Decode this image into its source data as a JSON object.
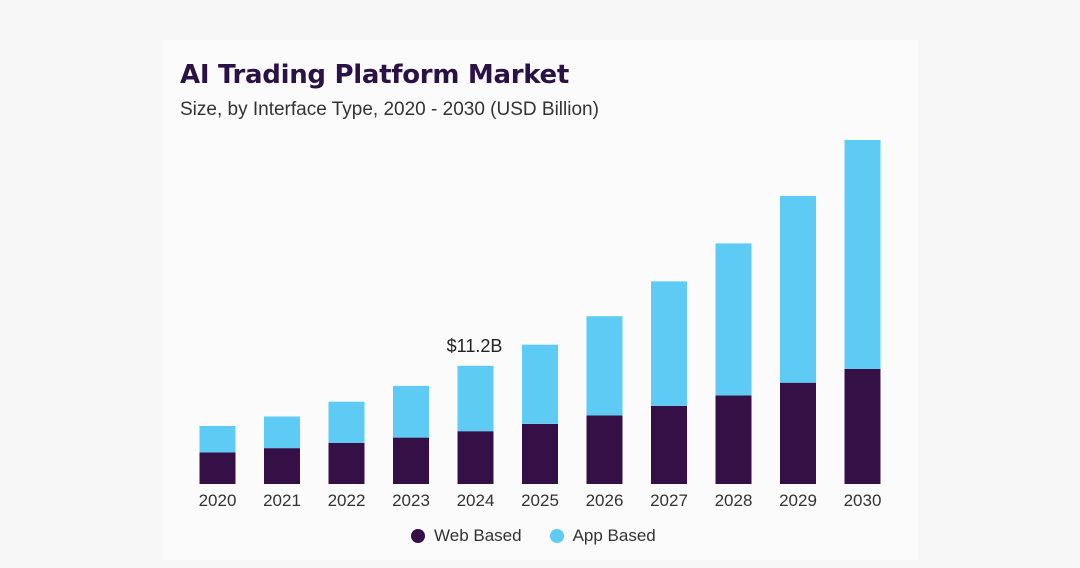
{
  "chart_data": {
    "type": "bar",
    "stacked": true,
    "title": "AI Trading Platform Market",
    "subtitle": "Size, by Interface Type, 2020 - 2030 (USD Billion)",
    "categories": [
      "2020",
      "2021",
      "2022",
      "2023",
      "2024",
      "2025",
      "2026",
      "2027",
      "2028",
      "2029",
      "2030"
    ],
    "series": [
      {
        "name": "Web Based",
        "color": "#351047",
        "values": [
          3.0,
          3.4,
          3.9,
          4.4,
          5.0,
          5.7,
          6.5,
          7.4,
          8.4,
          9.6,
          10.9
        ]
      },
      {
        "name": "App Based",
        "color": "#5ecbf5",
        "values": [
          2.5,
          3.0,
          3.9,
          4.9,
          6.2,
          7.5,
          9.4,
          11.8,
          14.4,
          17.7,
          21.7
        ]
      }
    ],
    "annotations": [
      {
        "category": "2024",
        "text": "$11.2B"
      }
    ],
    "ylim": [
      0,
      32.6
    ],
    "grid": false,
    "legend_position": "bottom-center"
  }
}
